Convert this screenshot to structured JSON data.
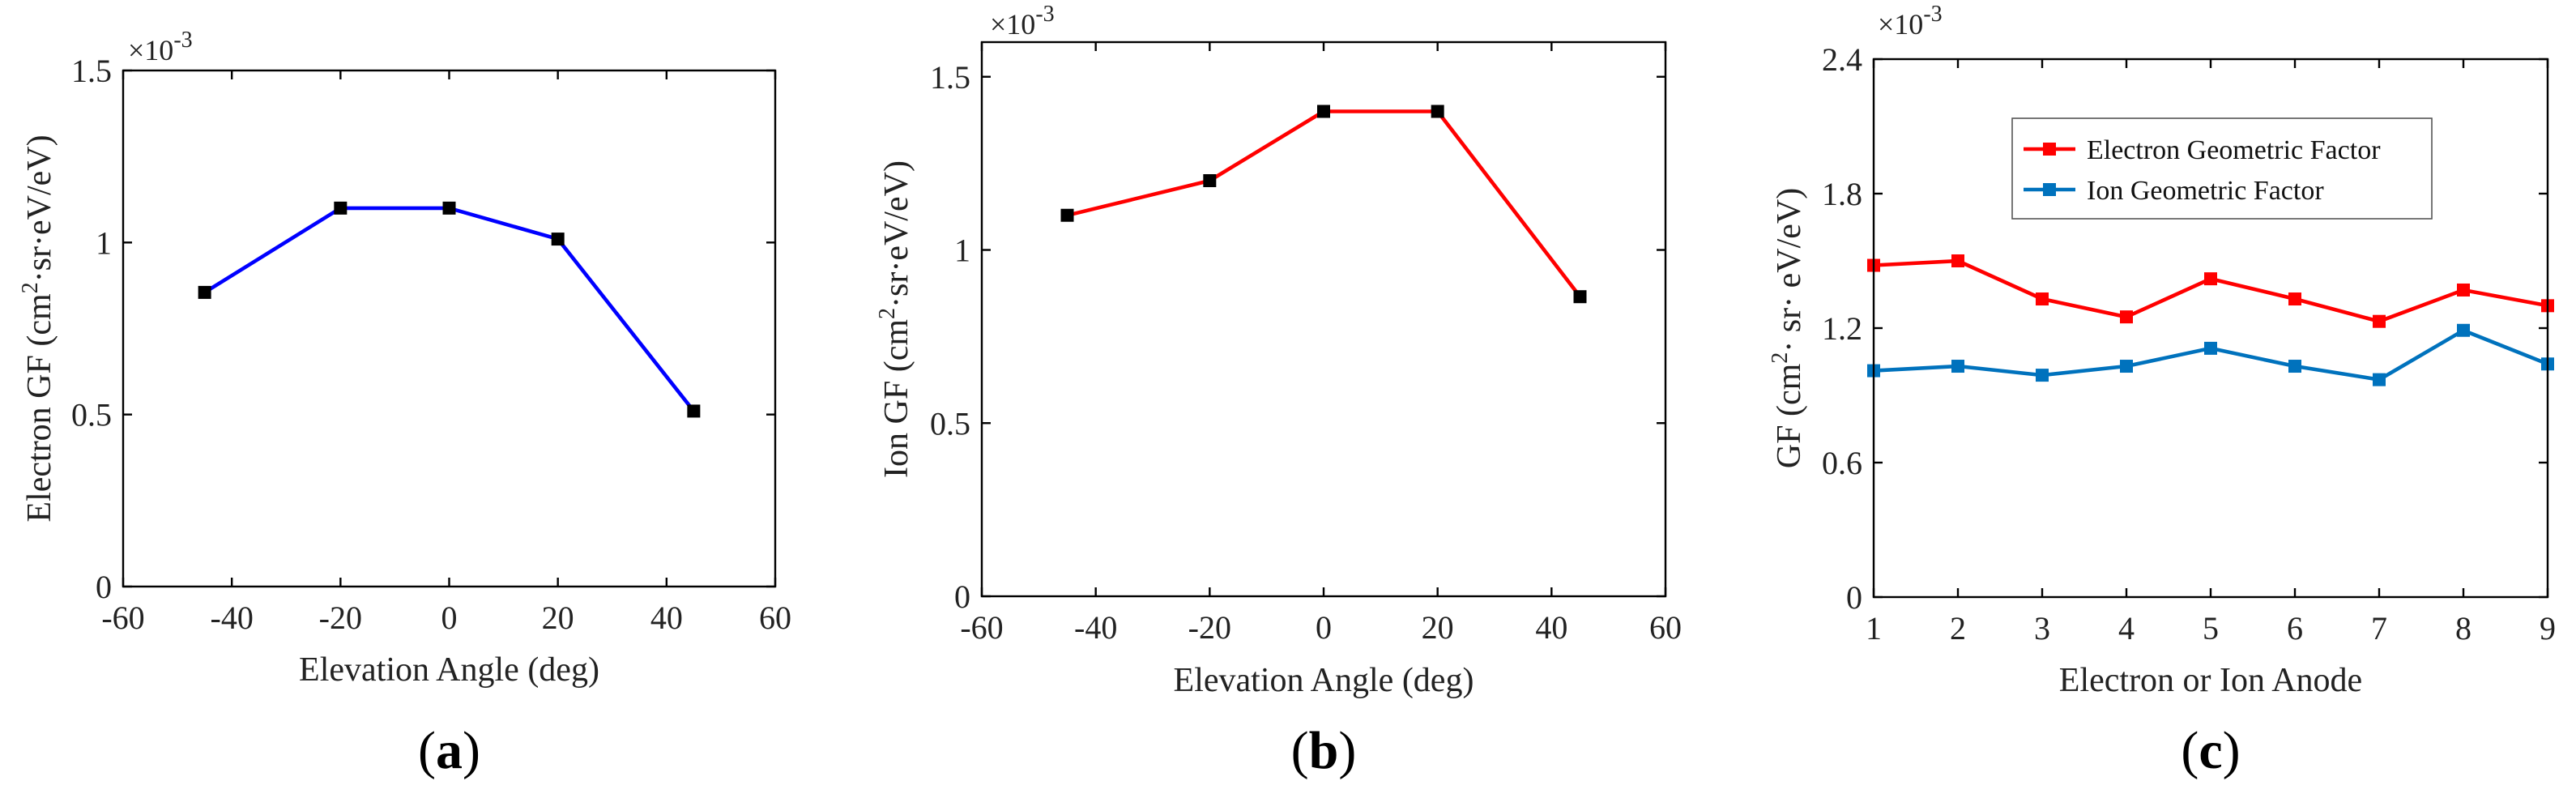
{
  "chart_data": [
    {
      "panel": "(a)",
      "panel_prefix": "(",
      "panel_letter": "a",
      "panel_suffix": ")",
      "type": "line",
      "xlabel": "Elevation Angle (deg)",
      "ylabel_pre": "Electron GF (cm",
      "ylabel_sup": "2",
      "ylabel_post": "·sr·eV/eV)",
      "exponent_base": "×10",
      "exponent_power": "-3",
      "xlim": [
        -60,
        60
      ],
      "ylim": [
        0,
        1.5
      ],
      "xticks": [
        -60,
        -40,
        -20,
        0,
        20,
        40,
        60
      ],
      "xtick_labels": [
        "-60",
        "-40",
        "-20",
        "0",
        "20",
        "40",
        "60"
      ],
      "yticks": [
        0,
        0.5,
        1,
        1.5
      ],
      "ytick_labels": [
        "0",
        "0.5",
        "1",
        "1.5"
      ],
      "series": [
        {
          "name": "Electron GF",
          "color": "#0000ff",
          "marker_color": "#000000",
          "x": [
            -45,
            -20,
            0,
            20,
            45
          ],
          "y": [
            0.855,
            1.1,
            1.1,
            1.01,
            0.51
          ]
        }
      ]
    },
    {
      "panel": "(b)",
      "panel_prefix": "(",
      "panel_letter": "b",
      "panel_suffix": ")",
      "type": "line",
      "xlabel": "Elevation Angle (deg)",
      "ylabel_pre": "Ion GF (cm",
      "ylabel_sup": "2",
      "ylabel_post": "·sr·eV/eV)",
      "exponent_base": "×10",
      "exponent_power": "-3",
      "xlim": [
        -60,
        60
      ],
      "ylim": [
        0,
        1.6
      ],
      "xticks": [
        -60,
        -40,
        -20,
        0,
        20,
        40,
        60
      ],
      "xtick_labels": [
        "-60",
        "-40",
        "-20",
        "0",
        "20",
        "40",
        "60"
      ],
      "yticks": [
        0,
        0.5,
        1,
        1.5
      ],
      "ytick_labels": [
        "0",
        "0.5",
        "1",
        "1.5"
      ],
      "series": [
        {
          "name": "Ion GF",
          "color": "#ff0000",
          "marker_color": "#000000",
          "x": [
            -45,
            -20,
            0,
            20,
            45
          ],
          "y": [
            1.1,
            1.2,
            1.4,
            1.4,
            0.865
          ]
        }
      ]
    },
    {
      "panel": "(c)",
      "panel_prefix": "(",
      "panel_letter": "c",
      "panel_suffix": ")",
      "type": "line",
      "xlabel": "Electron or Ion Anode",
      "ylabel_pre": "GF (cm",
      "ylabel_sup": "2",
      "ylabel_post": "· sr· eV/eV)",
      "exponent_base": "×10",
      "exponent_power": "-3",
      "xlim": [
        1,
        9
      ],
      "ylim": [
        0,
        2.4
      ],
      "xticks": [
        1,
        2,
        3,
        4,
        5,
        6,
        7,
        8,
        9
      ],
      "xtick_labels": [
        "1",
        "2",
        "3",
        "4",
        "5",
        "6",
        "7",
        "8",
        "9"
      ],
      "yticks": [
        0,
        0.6,
        1.2,
        1.8,
        2.4
      ],
      "ytick_labels": [
        "0",
        "0.6",
        "1.2",
        "1.8",
        "2.4"
      ],
      "legend_position": "top-right",
      "series": [
        {
          "name": "Electron Geometric Factor",
          "color": "#ff0000",
          "marker_color": "#ff0000",
          "x": [
            1,
            2,
            3,
            4,
            5,
            6,
            7,
            8,
            9
          ],
          "y": [
            1.48,
            1.5,
            1.33,
            1.25,
            1.42,
            1.33,
            1.23,
            1.37,
            1.3
          ]
        },
        {
          "name": "Ion Geometric Factor",
          "color": "#0072bd",
          "marker_color": "#0072bd",
          "x": [
            1,
            2,
            3,
            4,
            5,
            6,
            7,
            8,
            9
          ],
          "y": [
            1.01,
            1.03,
            0.99,
            1.03,
            1.11,
            1.03,
            0.97,
            1.19,
            1.04
          ]
        }
      ]
    }
  ]
}
